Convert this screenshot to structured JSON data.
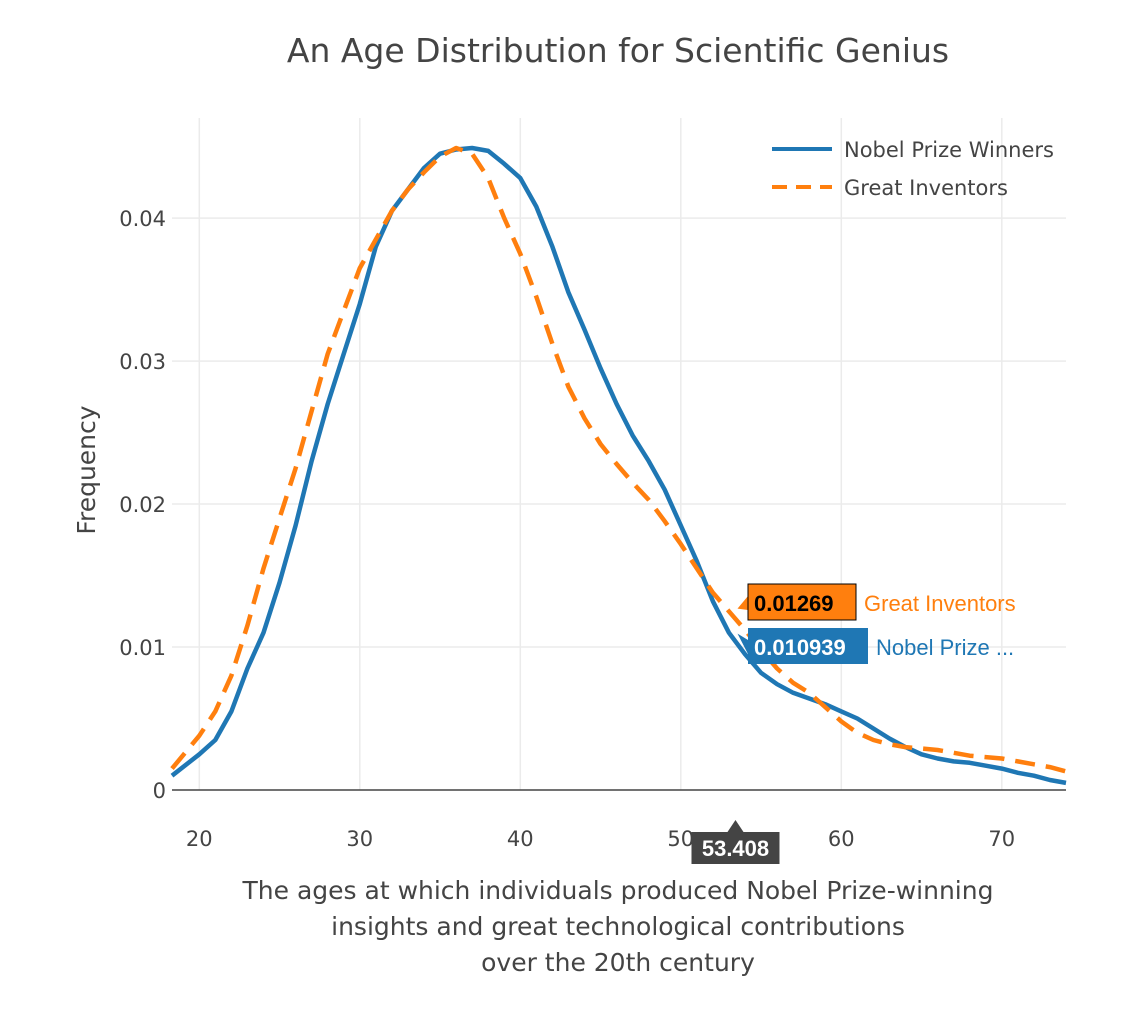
{
  "chart_data": {
    "type": "line",
    "title": "An Age Distribution for Scientific Genius",
    "xlabel_lines": [
      "The ages at which individuals produced Nobel Prize-winning",
      "insights and great technological contributions",
      "over the 20th century"
    ],
    "ylabel": "Frequency",
    "xlim": [
      18.3,
      74
    ],
    "ylim": [
      0,
      0.047
    ],
    "x_ticks": [
      "20",
      "30",
      "40",
      "50",
      "60",
      "70"
    ],
    "x_tick_values": [
      20,
      30,
      40,
      50,
      60,
      70
    ],
    "y_ticks": [
      "0",
      "0.01",
      "0.02",
      "0.03",
      "0.04"
    ],
    "y_tick_values": [
      0,
      0.01,
      0.02,
      0.03,
      0.04
    ],
    "grid": true,
    "legend_position": "top-right",
    "series": [
      {
        "name": "Nobel Prize Winners",
        "color": "#1f77b4",
        "dash": "solid",
        "x": [
          18.3,
          20,
          21,
          22,
          23,
          24,
          25,
          26,
          27,
          28,
          29,
          30,
          31,
          32,
          33,
          34,
          35,
          36,
          37,
          38,
          39,
          40,
          41,
          42,
          43,
          44,
          45,
          46,
          47,
          48,
          49,
          50,
          51,
          52,
          53,
          54,
          55,
          56,
          57,
          58,
          59,
          60,
          61,
          62,
          63,
          64,
          65,
          66,
          67,
          68,
          69,
          70,
          71,
          72,
          73,
          74
        ],
        "y": [
          0.001,
          0.0025,
          0.0035,
          0.0055,
          0.0085,
          0.011,
          0.0145,
          0.0185,
          0.023,
          0.027,
          0.0305,
          0.034,
          0.038,
          0.0405,
          0.042,
          0.0435,
          0.0445,
          0.0448,
          0.0449,
          0.0447,
          0.0438,
          0.0428,
          0.0408,
          0.038,
          0.0348,
          0.0322,
          0.0295,
          0.027,
          0.0248,
          0.023,
          0.021,
          0.0185,
          0.016,
          0.0132,
          0.011,
          0.0095,
          0.0082,
          0.0074,
          0.0068,
          0.0064,
          0.006,
          0.0055,
          0.005,
          0.0043,
          0.0036,
          0.003,
          0.0025,
          0.0022,
          0.002,
          0.0019,
          0.0017,
          0.0015,
          0.0012,
          0.001,
          0.0007,
          0.0005
        ]
      },
      {
        "name": "Great Inventors",
        "color": "#ff7f0e",
        "dash": "dash",
        "x": [
          18.3,
          20,
          21,
          22,
          23,
          24,
          25,
          26,
          27,
          28,
          29,
          30,
          31,
          32,
          33,
          34,
          35,
          36,
          37,
          38,
          39,
          40,
          41,
          42,
          43,
          44,
          45,
          46,
          47,
          48,
          49,
          50,
          51,
          52,
          53,
          54,
          55,
          56,
          57,
          58,
          59,
          60,
          61,
          62,
          63,
          64,
          65,
          66,
          67,
          68,
          69,
          70,
          71,
          72,
          73,
          74
        ],
        "y": [
          0.0015,
          0.0038,
          0.0055,
          0.008,
          0.0115,
          0.0155,
          0.019,
          0.0225,
          0.0265,
          0.0305,
          0.0335,
          0.0365,
          0.0385,
          0.0405,
          0.042,
          0.0432,
          0.0443,
          0.0449,
          0.0445,
          0.0428,
          0.04,
          0.0375,
          0.0345,
          0.0312,
          0.0282,
          0.026,
          0.0242,
          0.0228,
          0.0215,
          0.0203,
          0.0188,
          0.0172,
          0.0155,
          0.0138,
          0.0125,
          0.0112,
          0.0098,
          0.0085,
          0.0075,
          0.0068,
          0.0058,
          0.0048,
          0.004,
          0.0035,
          0.0032,
          0.003,
          0.0029,
          0.0028,
          0.0026,
          0.0024,
          0.0023,
          0.0022,
          0.002,
          0.0018,
          0.0016,
          0.0013
        ]
      }
    ],
    "hover": {
      "x_label": "53.408",
      "x_value": 53.408,
      "points": [
        {
          "value": "0.01269",
          "y": 0.01269,
          "name": "Great Inventors",
          "color": "#ff7f0e",
          "text_color": "#000000"
        },
        {
          "value": "0.010939",
          "y": 0.010939,
          "name": "Nobel Prize ...",
          "color": "#1f77b4",
          "text_color": "#ffffff"
        }
      ]
    }
  }
}
